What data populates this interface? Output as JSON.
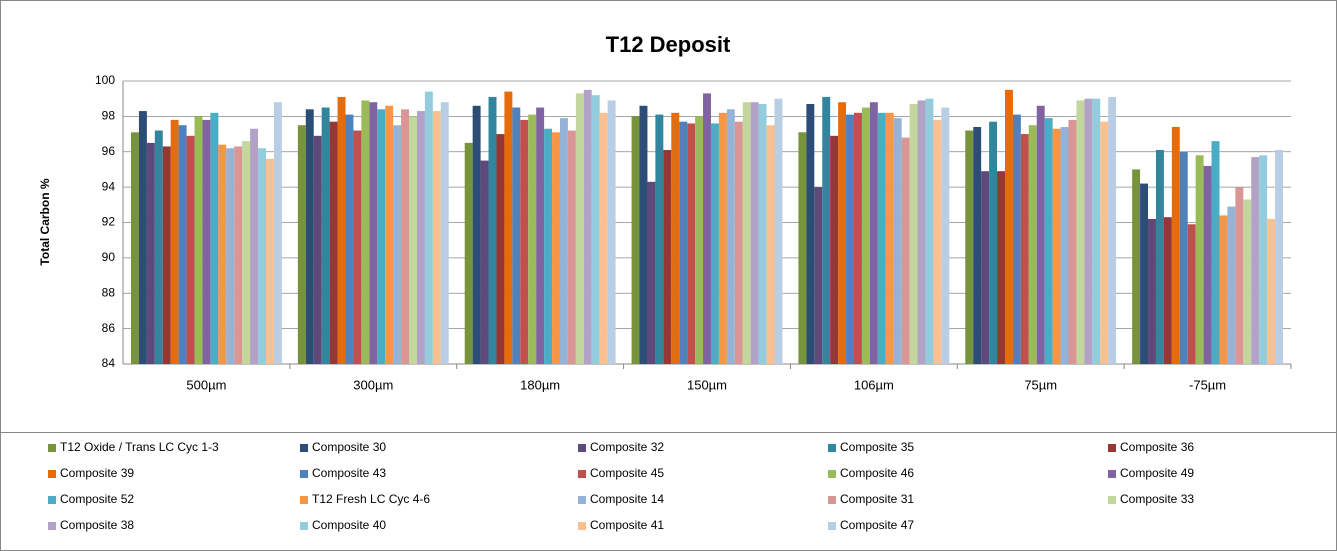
{
  "chart_data": {
    "type": "bar",
    "title": "T12 Deposit",
    "y_label": "Total Carbon %",
    "categories": [
      "500µm",
      "300µm",
      "180µm",
      "150µm",
      "106µm",
      "75µm",
      "-75µm"
    ],
    "ylim": [
      84,
      100
    ],
    "yticks": [
      84,
      86,
      88,
      90,
      92,
      94,
      96,
      98,
      100
    ],
    "grid": true,
    "legend": "bottom",
    "series": [
      {
        "name": "T12 Oxide / Trans LC Cyc 1-3",
        "color": "#77933C",
        "values": [
          97.1,
          97.5,
          96.5,
          98.0,
          97.1,
          97.2,
          95.0
        ]
      },
      {
        "name": "Composite 30",
        "color": "#2C4D75",
        "values": [
          98.3,
          98.4,
          98.6,
          98.6,
          98.7,
          97.4,
          94.2
        ]
      },
      {
        "name": "Composite 32",
        "color": "#5F497A",
        "values": [
          96.5,
          96.9,
          95.5,
          94.3,
          94.0,
          94.9,
          92.2
        ]
      },
      {
        "name": "Composite 35",
        "color": "#31859C",
        "values": [
          97.2,
          98.5,
          99.1,
          98.1,
          99.1,
          97.7,
          96.1
        ]
      },
      {
        "name": "Composite 36",
        "color": "#953735",
        "values": [
          96.3,
          97.7,
          97.0,
          96.1,
          96.9,
          94.9,
          92.3
        ]
      },
      {
        "name": "Composite 39",
        "color": "#E46C0A",
        "values": [
          97.8,
          99.1,
          99.4,
          98.2,
          98.8,
          99.5,
          97.4
        ]
      },
      {
        "name": "Composite 43",
        "color": "#4F81BD",
        "values": [
          97.5,
          98.1,
          98.5,
          97.7,
          98.1,
          98.1,
          96.0
        ]
      },
      {
        "name": "Composite 45",
        "color": "#C0504D",
        "values": [
          96.9,
          97.2,
          97.8,
          97.6,
          98.2,
          97.0,
          91.9
        ]
      },
      {
        "name": "Composite 46",
        "color": "#9BBB59",
        "values": [
          98.0,
          98.9,
          98.1,
          98.0,
          98.5,
          97.5,
          95.8
        ]
      },
      {
        "name": "Composite 49",
        "color": "#8064A2",
        "values": [
          97.8,
          98.8,
          98.5,
          99.3,
          98.8,
          98.6,
          95.2
        ]
      },
      {
        "name": "Composite 52",
        "color": "#4BACC6",
        "values": [
          98.2,
          98.4,
          97.3,
          97.6,
          98.2,
          97.9,
          96.6
        ]
      },
      {
        "name": "T12 Fresh LC Cyc 4-6",
        "color": "#F79646",
        "values": [
          96.4,
          98.6,
          97.1,
          98.2,
          98.2,
          97.3,
          92.4
        ]
      },
      {
        "name": "Composite 14",
        "color": "#95B3D7",
        "values": [
          96.2,
          97.5,
          97.9,
          98.4,
          97.9,
          97.4,
          92.9
        ]
      },
      {
        "name": "Composite 31",
        "color": "#D99694",
        "values": [
          96.3,
          98.4,
          97.2,
          97.7,
          96.8,
          97.8,
          94.0
        ]
      },
      {
        "name": "Composite 33",
        "color": "#C3D69B",
        "values": [
          96.6,
          98.0,
          99.3,
          98.8,
          98.7,
          98.9,
          93.3
        ]
      },
      {
        "name": "Composite 38",
        "color": "#B3A2C7",
        "values": [
          97.3,
          98.3,
          99.5,
          98.8,
          98.9,
          99.0,
          95.7
        ]
      },
      {
        "name": "Composite 40",
        "color": "#93CDDD",
        "values": [
          96.2,
          99.4,
          99.2,
          98.7,
          99.0,
          99.0,
          95.8
        ]
      },
      {
        "name": "Composite 41",
        "color": "#FAC090",
        "values": [
          95.6,
          98.3,
          98.2,
          97.5,
          97.8,
          97.7,
          92.2
        ]
      },
      {
        "name": "Composite 47",
        "color": "#B9CDE5",
        "values": [
          98.8,
          98.8,
          98.9,
          99.0,
          98.5,
          99.1,
          96.1
        ]
      }
    ]
  }
}
